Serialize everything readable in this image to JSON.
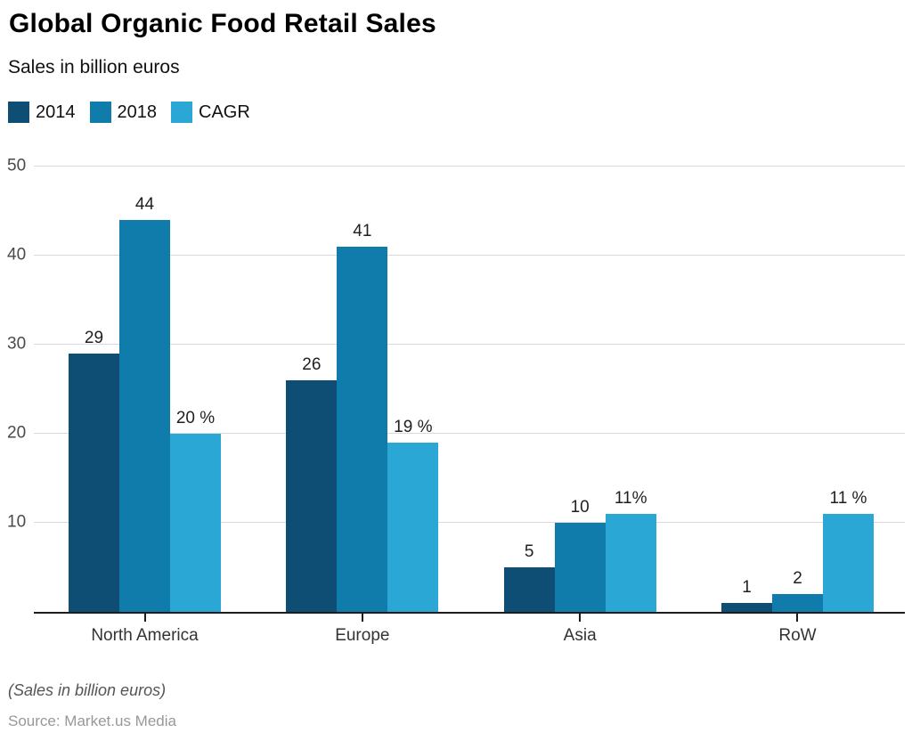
{
  "header": {
    "title": "Global Organic Food Retail Sales",
    "subtitle": "Sales in billion euros"
  },
  "legend": {
    "items": [
      {
        "label": "2014",
        "color": "#0e4e74"
      },
      {
        "label": "2018",
        "color": "#107cab"
      },
      {
        "label": "CAGR",
        "color": "#2aa7d4"
      }
    ]
  },
  "chart_data": {
    "type": "bar",
    "title": "Global Organic Food Retail Sales",
    "subtitle": "Sales in billion euros",
    "categories": [
      "North America",
      "Europe",
      "Asia",
      "RoW"
    ],
    "series": [
      {
        "name": "2014",
        "color": "#0e4e74",
        "values": [
          29,
          26,
          5,
          1
        ],
        "labels": [
          "29",
          "26",
          "5",
          "1"
        ]
      },
      {
        "name": "2018",
        "color": "#107cab",
        "values": [
          44,
          41,
          10,
          2
        ],
        "labels": [
          "44",
          "41",
          "10",
          "2"
        ]
      },
      {
        "name": "CAGR",
        "color": "#2aa7d4",
        "values": [
          20,
          19,
          11,
          11
        ],
        "labels": [
          "20 %",
          "19 %",
          "11%",
          "11 %"
        ],
        "unit": "%"
      }
    ],
    "ylabel": "Sales in billion euros",
    "xlabel": "",
    "ylim": [
      0,
      50
    ],
    "yticks": [
      10,
      20,
      30,
      40,
      50
    ],
    "grid": true,
    "legend_position": "top-left"
  },
  "footer": {
    "note": "(Sales in billion euros)",
    "source": "Source: Market.us Media"
  }
}
